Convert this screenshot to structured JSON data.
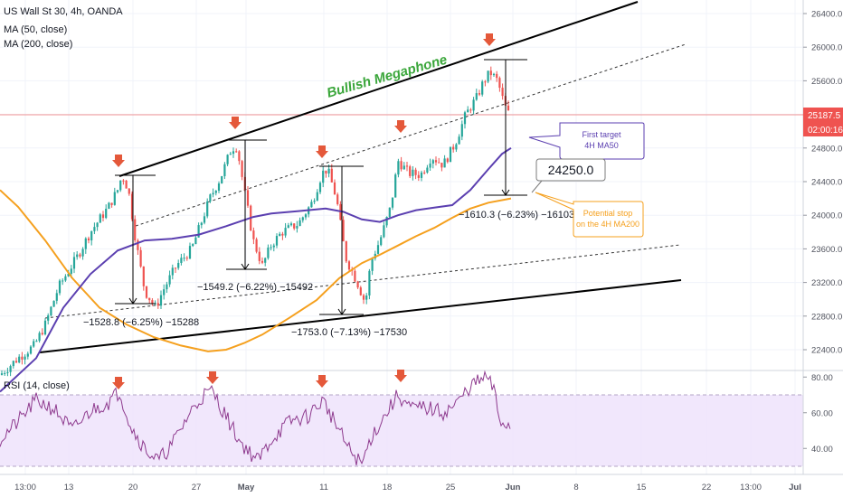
{
  "chart_data": [
    {
      "type": "line",
      "title": "US Wall St 30, 4h, OANDA",
      "indicators": [
        "MA (50, close)",
        "MA (200, close)"
      ],
      "price_axis": {
        "ticks": [
          22400,
          22800,
          23200,
          23600,
          24000,
          24400,
          24800,
          25200,
          25600,
          26000,
          26400
        ],
        "tick_labels": [
          "22400.0",
          "22800.0",
          "23200.0",
          "23600.0",
          "24000.0",
          "24400.0",
          "24800.0",
          "",
          "25600.0",
          "26000.0",
          "26400.0"
        ],
        "ylim": [
          22200,
          26550
        ]
      },
      "time_axis": {
        "labels": [
          "13:00",
          "13",
          "20",
          "27",
          "May",
          "11",
          "18",
          "25",
          "Jun",
          "8",
          "15",
          "22",
          "13:00",
          "Jul"
        ],
        "bold": [
          "May",
          "Jun",
          "Jul"
        ]
      },
      "current_price": {
        "value": "25187.5",
        "countdown": "02:00:16"
      },
      "target_box": {
        "value": "24250.0"
      },
      "annotations": {
        "pattern": "Bullish Megaphone",
        "first_target": [
          "First target",
          "4H MA50"
        ],
        "stop": [
          "Potential stop",
          "on the 4H MA200"
        ]
      },
      "measurements": [
        {
          "text": "−1528.8 (−6.25%) −15288"
        },
        {
          "text": "−1549.2 (−6.22%) −15492"
        },
        {
          "text": "−1753.0 (−7.13%) −17530"
        },
        {
          "text": "−1610.3 (−6.23%) −16103"
        }
      ],
      "colors": {
        "ma50": "#5b3fb0",
        "ma200": "#f5a01e",
        "arrow": "#e4583a",
        "pattern_text": "#3aa63a",
        "rsi": "#8e3a8e",
        "current_line": "#ef5350"
      }
    },
    {
      "type": "line",
      "title": "RSI (14, close)",
      "ticks": [
        40,
        60,
        80
      ],
      "tick_labels": [
        "40.00",
        "60.00",
        "80.00"
      ],
      "ylim": [
        26,
        83
      ],
      "band": [
        30,
        70
      ]
    }
  ]
}
